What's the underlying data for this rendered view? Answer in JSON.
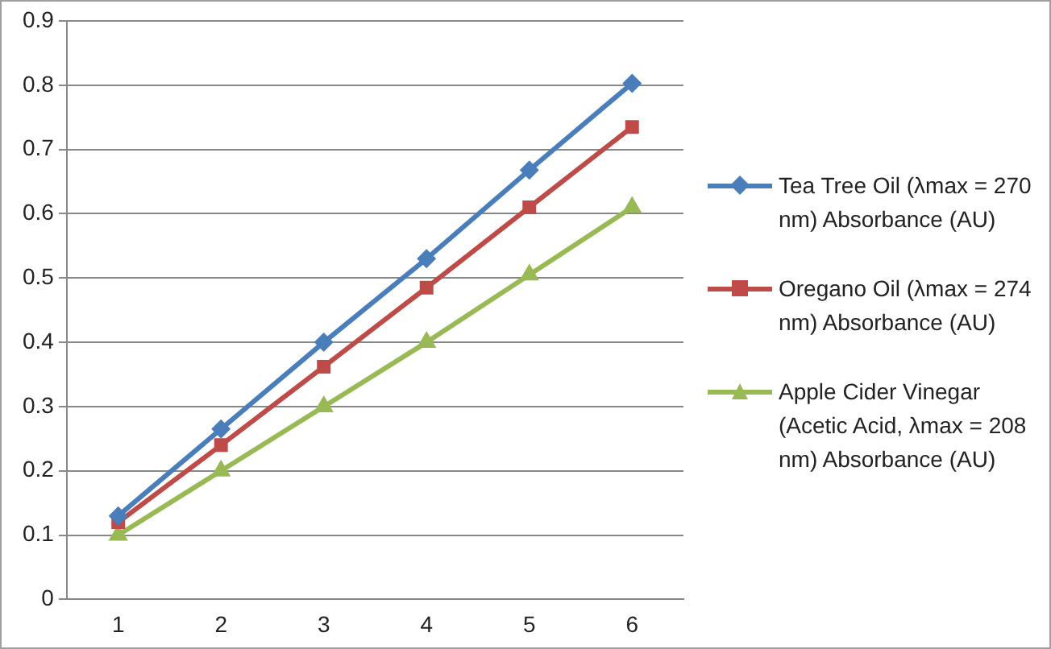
{
  "chart_data": {
    "type": "line",
    "categories": [
      "1",
      "2",
      "3",
      "4",
      "5",
      "6"
    ],
    "series": [
      {
        "name": "Tea Tree Oil (λmax = 270 nm) Absorbance (AU)",
        "color": "#4a7ebb",
        "marker": "diamond",
        "values": [
          0.13,
          0.265,
          0.4,
          0.53,
          0.668,
          0.803
        ]
      },
      {
        "name": "Oregano Oil (λmax = 274 nm) Absorbance (AU)",
        "color": "#be4b48",
        "marker": "square",
        "values": [
          0.12,
          0.24,
          0.362,
          0.485,
          0.61,
          0.735
        ]
      },
      {
        "name": "Apple Cider Vinegar (Acetic Acid, λmax = 208 nm) Absorbance (AU)",
        "color": "#98b954",
        "marker": "triangle",
        "values": [
          0.1,
          0.2,
          0.3,
          0.4,
          0.505,
          0.61
        ]
      }
    ],
    "ylim": [
      0,
      0.9
    ],
    "yticks": [
      0,
      0.1,
      0.2,
      0.3,
      0.4,
      0.5,
      0.6,
      0.7,
      0.8,
      0.9
    ],
    "grid": "y",
    "legend": "right",
    "line_style": "solid"
  }
}
